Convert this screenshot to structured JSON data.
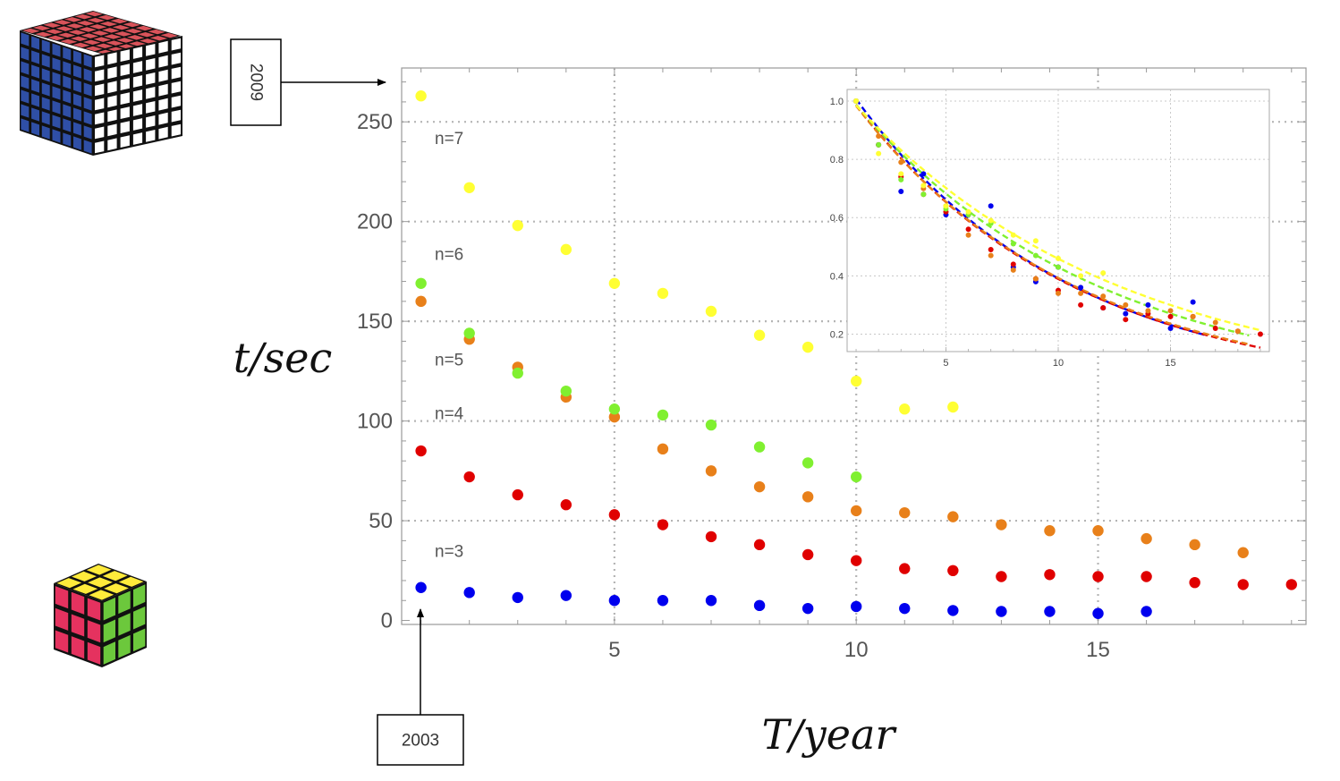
{
  "chart_data": {
    "type": "scatter",
    "xlabel": "T/year",
    "ylabel": "t/sec",
    "xlim": [
      0.6,
      19.3
    ],
    "ylim": [
      -2,
      277
    ],
    "x_ticks": [
      5,
      10,
      15
    ],
    "y_ticks": [
      0,
      50,
      100,
      150,
      200,
      250
    ],
    "grid": "dotted",
    "series": [
      {
        "name": "n=3",
        "label_y": 35,
        "color": "#0000ee",
        "x": [
          1,
          2,
          3,
          4,
          5,
          6,
          7,
          8,
          9,
          10,
          11,
          12,
          13,
          14,
          15,
          16
        ],
        "y": [
          16.5,
          14,
          11.5,
          12.5,
          10,
          10,
          10,
          7.5,
          6,
          7,
          6,
          5,
          4.5,
          4.5,
          3.5,
          4.5
        ]
      },
      {
        "name": "n=4",
        "label_y": 104,
        "color": "#e00000",
        "x": [
          1,
          2,
          3,
          4,
          5,
          6,
          7,
          8,
          9,
          10,
          11,
          12,
          13,
          14,
          15,
          16,
          17,
          18,
          19
        ],
        "y": [
          85,
          72,
          63,
          58,
          53,
          48,
          42,
          38,
          33,
          30,
          26,
          25,
          22,
          23,
          22,
          22,
          19,
          18,
          18
        ]
      },
      {
        "name": "n=5",
        "label_y": 131,
        "color": "#e8801a",
        "x": [
          1,
          2,
          3,
          4,
          5,
          6,
          7,
          8,
          9,
          10,
          11,
          12,
          13,
          14,
          15,
          16,
          17,
          18
        ],
        "y": [
          160,
          141,
          127,
          112,
          102,
          86,
          75,
          67,
          62,
          55,
          54,
          52,
          48,
          45,
          45,
          41,
          38,
          34
        ]
      },
      {
        "name": "n=6",
        "label_y": 184,
        "color": "#80f030",
        "x": [
          1,
          2,
          3,
          4,
          5,
          6,
          7,
          8,
          9,
          10
        ],
        "y": [
          169,
          144,
          124,
          115,
          106,
          103,
          98,
          87,
          79,
          72
        ]
      },
      {
        "name": "n=7",
        "label_y": 242,
        "color": "#ffff33",
        "x": [
          1,
          2,
          3,
          4,
          5,
          6,
          7,
          8,
          9,
          10,
          11,
          12
        ],
        "y": [
          263,
          217,
          198,
          186,
          169,
          164,
          155,
          143,
          137,
          120,
          106,
          107
        ]
      }
    ],
    "inset": {
      "type": "scatter+fit",
      "xlim": [
        0.6,
        19.4
      ],
      "ylim": [
        0.14,
        1.04
      ],
      "x_ticks": [
        5,
        10,
        15
      ],
      "y_ticks": [
        0.2,
        0.4,
        0.6,
        0.8,
        1.0
      ],
      "y_tick_labels": [
        "0.2",
        "0.4",
        "0.6",
        "0.8",
        "1.0"
      ],
      "grid": "dotted",
      "fits": [
        {
          "series": "n=3",
          "color": "#0000ee",
          "a": 1.05,
          "k": 0.105,
          "x_end": 16.5
        },
        {
          "series": "n=4",
          "color": "#e00000",
          "a": 1.03,
          "k": 0.1035,
          "x_end": 19
        },
        {
          "series": "n=5",
          "color": "#e8801a",
          "a": 1.025,
          "k": 0.102,
          "x_end": 18.5
        },
        {
          "series": "n=6",
          "color": "#80f030",
          "a": 1.025,
          "k": 0.0925,
          "x_end": 18.5
        },
        {
          "series": "n=7",
          "color": "#ffff33",
          "a": 1.02,
          "k": 0.085,
          "x_end": 19
        }
      ],
      "points": [
        {
          "series": "n=3",
          "color": "#0000ee",
          "x": [
            1,
            2,
            3,
            4,
            5,
            6,
            7,
            8,
            9,
            10,
            11,
            12,
            13,
            14,
            15,
            16
          ],
          "y": [
            1.0,
            0.85,
            0.69,
            0.75,
            0.61,
            0.61,
            0.64,
            0.43,
            0.38,
            0.43,
            0.36,
            0.29,
            0.27,
            0.3,
            0.22,
            0.31
          ]
        },
        {
          "series": "n=4",
          "color": "#e00000",
          "x": [
            1,
            2,
            3,
            4,
            5,
            6,
            7,
            8,
            9,
            10,
            11,
            12,
            13,
            14,
            15,
            16,
            17,
            18,
            19
          ],
          "y": [
            1.0,
            0.85,
            0.74,
            0.68,
            0.62,
            0.56,
            0.49,
            0.44,
            0.39,
            0.35,
            0.3,
            0.29,
            0.25,
            0.27,
            0.26,
            0.26,
            0.22,
            0.21,
            0.2
          ]
        },
        {
          "series": "n=5",
          "color": "#e8801a",
          "x": [
            1,
            2,
            3,
            4,
            5,
            6,
            7,
            8,
            9,
            10,
            11,
            12,
            13,
            14,
            15,
            16,
            17,
            18
          ],
          "y": [
            1.0,
            0.88,
            0.79,
            0.7,
            0.64,
            0.54,
            0.47,
            0.42,
            0.39,
            0.34,
            0.34,
            0.33,
            0.3,
            0.28,
            0.28,
            0.26,
            0.24,
            0.21
          ]
        },
        {
          "series": "n=6",
          "color": "#80f030",
          "x": [
            1,
            2,
            3,
            4,
            5,
            6,
            7,
            8,
            9,
            10
          ],
          "y": [
            1.0,
            0.85,
            0.73,
            0.68,
            0.63,
            0.61,
            0.58,
            0.51,
            0.47,
            0.43
          ]
        },
        {
          "series": "n=7",
          "color": "#ffff33",
          "x": [
            1,
            2,
            3,
            4,
            5,
            6,
            7,
            8,
            9,
            10,
            11,
            12
          ],
          "y": [
            1.0,
            0.82,
            0.75,
            0.71,
            0.64,
            0.62,
            0.59,
            0.54,
            0.52,
            0.46,
            0.4,
            0.41
          ]
        }
      ]
    }
  },
  "annotations": {
    "top_box": "2009",
    "bottom_box": "2003"
  },
  "cube_colors": {
    "big_top": "#d9535a",
    "big_left": "#2f4fa6",
    "big_right": "#ffffff",
    "small_top": "#ffeb3b",
    "small_left": "#e5325f",
    "small_right": "#6cc83c"
  }
}
